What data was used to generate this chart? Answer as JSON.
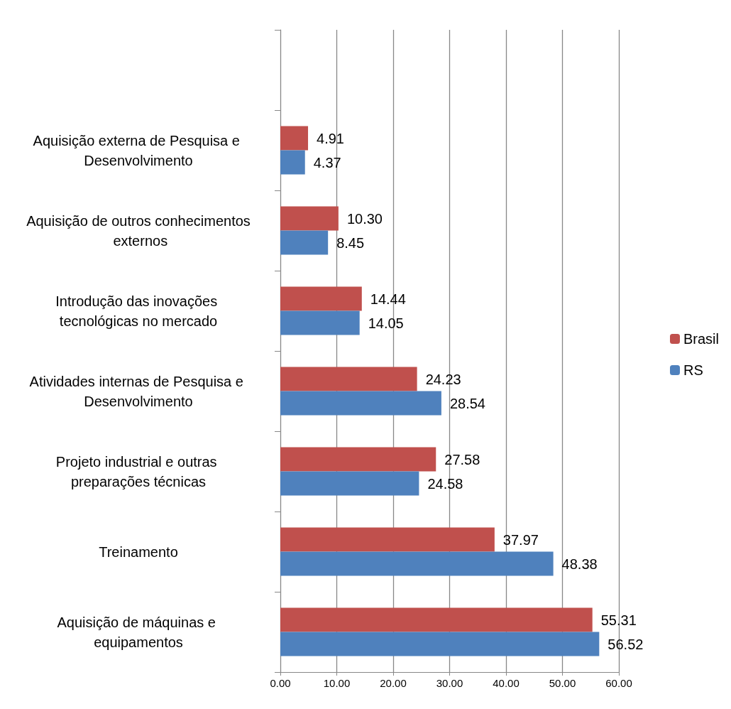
{
  "chart_data": {
    "type": "bar",
    "orientation": "horizontal",
    "categories": [
      null,
      "Aquisição externa de Pesquisa e Desenvolvimento",
      "Aquisição de outros conhecimentos externos",
      "Introdução das inovações tecnológicas no mercado",
      "Atividades internas de Pesquisa e Desenvolvimento",
      "Projeto industrial e outras preparações técnicas",
      "Treinamento",
      "Aquisição de máquinas e equipamentos"
    ],
    "series": [
      {
        "name": "Brasil",
        "color": "#c0504d",
        "values": [
          null,
          4.91,
          10.3,
          14.44,
          24.23,
          27.58,
          37.97,
          55.31
        ],
        "value_labels": [
          null,
          "4.91",
          "10.30",
          "14.44",
          "24.23",
          "27.58",
          "37.97",
          "55.31"
        ]
      },
      {
        "name": "RS",
        "color": "#4f81bd",
        "values": [
          null,
          4.37,
          8.45,
          14.05,
          28.54,
          24.58,
          48.38,
          56.52
        ],
        "value_labels": [
          null,
          "4.37",
          "8.45",
          "14.05",
          "28.54",
          "24.58",
          "48.38",
          "56.52"
        ]
      }
    ],
    "xlim": [
      0,
      60
    ],
    "xticks": [
      {
        "value": 0,
        "label": "0.00"
      },
      {
        "value": 10,
        "label": "10.00"
      },
      {
        "value": 20,
        "label": "20.00"
      },
      {
        "value": 30,
        "label": "30.00"
      },
      {
        "value": 40,
        "label": "40.00"
      },
      {
        "value": 50,
        "label": "50.00"
      },
      {
        "value": 60,
        "label": "60.00"
      }
    ],
    "grid": "x",
    "legend": "right"
  }
}
